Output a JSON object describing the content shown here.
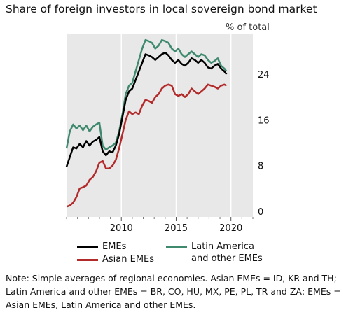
{
  "title": "Share of foreign investors in local sovereign bond market",
  "unit_label": "% of total",
  "note": "Note: Simple averages of regional economies. Asian EMEs = ID, KR and TH; Latin America and other EMEs = BR, CO, HU, MX, PE, PL, TR and ZA; EMEs = Asian EMEs, Latin America and other EMEs.",
  "legend": [
    {
      "label": "EMEs",
      "color": "#000000"
    },
    {
      "label": "Asian EMEs",
      "color": "#b22a2a"
    },
    {
      "label": "Latin America\nand other EMEs",
      "color": "#3f8a6e"
    }
  ],
  "chart_data": {
    "type": "line",
    "x_axis": {
      "range": [
        2005,
        2022
      ],
      "ticks": [
        2010,
        2015,
        2020
      ],
      "tick_labels": [
        "2010",
        "2015",
        "2020"
      ]
    },
    "y_axis": {
      "range": [
        -1,
        31
      ],
      "ticks": [
        0,
        8,
        16,
        24
      ],
      "tick_labels": [
        "0",
        "8",
        "16",
        "24"
      ],
      "side": "right"
    },
    "grid": {
      "vertical": true,
      "horizontal": false
    },
    "series": [
      {
        "name": "EMEs",
        "color": "#000000",
        "x": [
          2005.0,
          2005.3,
          2005.6,
          2005.9,
          2006.2,
          2006.5,
          2006.8,
          2007.1,
          2007.4,
          2007.7,
          2008.0,
          2008.3,
          2008.6,
          2008.9,
          2009.2,
          2009.5,
          2009.8,
          2010.1,
          2010.4,
          2010.7,
          2011.0,
          2011.3,
          2011.6,
          2011.9,
          2012.2,
          2012.5,
          2012.8,
          2013.1,
          2013.4,
          2013.7,
          2014.0,
          2014.3,
          2014.6,
          2014.9,
          2015.2,
          2015.5,
          2015.8,
          2016.1,
          2016.4,
          2016.7,
          2017.0,
          2017.3,
          2017.6,
          2017.9,
          2018.2,
          2018.5,
          2018.8,
          2019.1,
          2019.4,
          2019.6
        ],
        "values": [
          7.8,
          9.5,
          11.2,
          11.0,
          11.8,
          11.2,
          12.3,
          11.5,
          12.2,
          12.5,
          13.0,
          10.5,
          9.8,
          10.5,
          10.3,
          11.5,
          13.5,
          16.5,
          19.5,
          21.0,
          21.5,
          23.0,
          24.5,
          26.0,
          27.5,
          27.3,
          27.0,
          26.5,
          27.0,
          27.5,
          27.8,
          27.3,
          26.5,
          26.0,
          26.5,
          25.8,
          25.5,
          26.0,
          26.8,
          26.5,
          26.0,
          26.5,
          26.0,
          25.2,
          25.0,
          25.5,
          25.8,
          25.0,
          24.5,
          24.0
        ]
      },
      {
        "name": "Asian EMEs",
        "color": "#b22a2a",
        "x": [
          2005.0,
          2005.3,
          2005.6,
          2005.9,
          2006.2,
          2006.5,
          2006.8,
          2007.1,
          2007.4,
          2007.7,
          2008.0,
          2008.3,
          2008.6,
          2008.9,
          2009.2,
          2009.5,
          2009.8,
          2010.1,
          2010.4,
          2010.7,
          2011.0,
          2011.3,
          2011.6,
          2011.9,
          2012.2,
          2012.5,
          2012.8,
          2013.1,
          2013.4,
          2013.7,
          2014.0,
          2014.3,
          2014.6,
          2014.9,
          2015.2,
          2015.5,
          2015.8,
          2016.1,
          2016.4,
          2016.7,
          2017.0,
          2017.3,
          2017.6,
          2017.9,
          2018.2,
          2018.5,
          2018.8,
          2019.1,
          2019.4,
          2019.6
        ],
        "values": [
          0.8,
          1.0,
          1.5,
          2.5,
          4.0,
          4.2,
          4.5,
          5.5,
          6.0,
          7.0,
          8.5,
          8.8,
          7.5,
          7.5,
          8.0,
          9.0,
          11.0,
          13.5,
          16.0,
          17.5,
          17.0,
          17.3,
          17.0,
          18.5,
          19.5,
          19.3,
          19.0,
          20.0,
          20.5,
          21.5,
          22.0,
          22.2,
          22.0,
          20.5,
          20.2,
          20.5,
          20.0,
          20.5,
          21.5,
          21.0,
          20.5,
          21.0,
          21.5,
          22.2,
          22.0,
          21.8,
          21.5,
          22.0,
          22.2,
          22.0
        ]
      },
      {
        "name": "Latin America\nand other EMEs",
        "color": "#3f8a6e",
        "x": [
          2005.0,
          2005.3,
          2005.6,
          2005.9,
          2006.2,
          2006.5,
          2006.8,
          2007.1,
          2007.4,
          2007.7,
          2008.0,
          2008.3,
          2008.6,
          2008.9,
          2009.2,
          2009.5,
          2009.8,
          2010.1,
          2010.4,
          2010.7,
          2011.0,
          2011.3,
          2011.6,
          2011.9,
          2012.2,
          2012.5,
          2012.8,
          2013.1,
          2013.4,
          2013.7,
          2014.0,
          2014.3,
          2014.6,
          2014.9,
          2015.2,
          2015.5,
          2015.8,
          2016.1,
          2016.4,
          2016.7,
          2017.0,
          2017.3,
          2017.6,
          2017.9,
          2018.2,
          2018.5,
          2018.8,
          2019.1,
          2019.4,
          2019.6
        ],
        "values": [
          11.0,
          14.0,
          15.2,
          14.5,
          15.0,
          14.2,
          15.0,
          14.0,
          14.8,
          15.2,
          15.5,
          11.5,
          10.8,
          11.2,
          11.5,
          12.0,
          14.0,
          17.0,
          20.5,
          22.0,
          22.5,
          24.5,
          26.5,
          28.5,
          30.0,
          29.8,
          29.5,
          28.5,
          29.0,
          30.0,
          29.8,
          29.5,
          28.5,
          28.0,
          28.5,
          27.5,
          27.0,
          27.5,
          28.0,
          27.5,
          27.0,
          27.5,
          27.3,
          26.5,
          26.0,
          26.3,
          26.8,
          25.5,
          25.0,
          24.5
        ]
      }
    ]
  }
}
